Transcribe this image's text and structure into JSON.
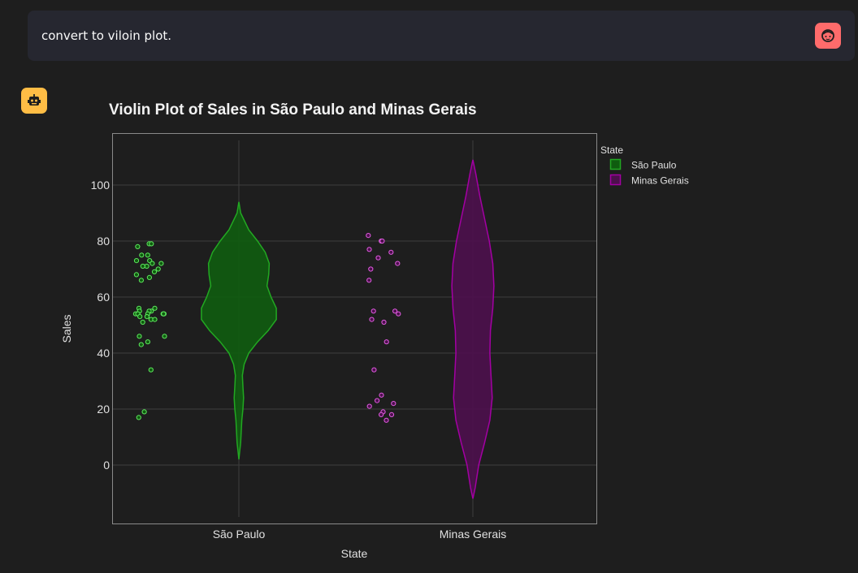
{
  "user_message": {
    "text": "convert to viloin plot."
  },
  "avatars": {
    "user": "user-face-icon",
    "assistant": "robot-icon"
  },
  "colors": {
    "background": "#1e1e1e",
    "user_bubble": "#262730",
    "user_avatar": "#ff6b6b",
    "assistant_avatar": "#ffbd45"
  },
  "chart_data": {
    "type": "violin",
    "title": "Violin Plot of Sales in São Paulo and Minas Gerais",
    "xlabel": "State",
    "ylabel": "Sales",
    "categories": [
      "São Paulo",
      "Minas Gerais"
    ],
    "yticks": [
      0,
      20,
      40,
      60,
      80,
      100
    ],
    "ylim": [
      -20,
      117
    ],
    "grid": true,
    "legend": {
      "title": "State",
      "position": "right",
      "entries": [
        "São Paulo",
        "Minas Gerais"
      ]
    },
    "series": [
      {
        "name": "São Paulo",
        "color": "#0f5c0f",
        "line_color": "#22a822",
        "point_color": "#5ee85e",
        "points": [
          79,
          79,
          78,
          75,
          75,
          73,
          73,
          72,
          72,
          71,
          71,
          70,
          69,
          68,
          67,
          66,
          56,
          56,
          55,
          55,
          55,
          54,
          54,
          54,
          54,
          54,
          54,
          53,
          53,
          52,
          52,
          51,
          46,
          46,
          44,
          43,
          34,
          19,
          17
        ],
        "violin": [
          [
            94,
            0
          ],
          [
            90,
            3
          ],
          [
            84,
            17
          ],
          [
            80,
            32
          ],
          [
            76,
            45
          ],
          [
            72,
            52
          ],
          [
            68,
            51
          ],
          [
            64,
            48
          ],
          [
            60,
            55
          ],
          [
            56,
            64
          ],
          [
            52,
            64
          ],
          [
            48,
            50
          ],
          [
            44,
            32
          ],
          [
            40,
            17
          ],
          [
            36,
            9
          ],
          [
            32,
            6
          ],
          [
            28,
            7
          ],
          [
            24,
            8
          ],
          [
            20,
            7
          ],
          [
            16,
            5
          ],
          [
            12,
            4
          ],
          [
            8,
            3
          ],
          [
            4,
            1
          ],
          [
            2,
            0
          ]
        ]
      },
      {
        "name": "Minas Gerais",
        "color": "#4d0f4d",
        "line_color": "#a300a3",
        "point_color": "#e05ce0",
        "points": [
          82,
          80,
          80,
          77,
          76,
          74,
          72,
          70,
          66,
          55,
          55,
          54,
          52,
          51,
          44,
          34,
          25,
          23,
          22,
          21,
          19,
          18,
          18,
          16
        ],
        "violin": [
          [
            109,
            0
          ],
          [
            104,
            5
          ],
          [
            96,
            12
          ],
          [
            88,
            20
          ],
          [
            80,
            28
          ],
          [
            72,
            34
          ],
          [
            64,
            36
          ],
          [
            56,
            34
          ],
          [
            48,
            30
          ],
          [
            40,
            29
          ],
          [
            32,
            31
          ],
          [
            24,
            33
          ],
          [
            16,
            29
          ],
          [
            8,
            20
          ],
          [
            0,
            10
          ],
          [
            -8,
            4
          ],
          [
            -12,
            0
          ]
        ]
      }
    ]
  }
}
